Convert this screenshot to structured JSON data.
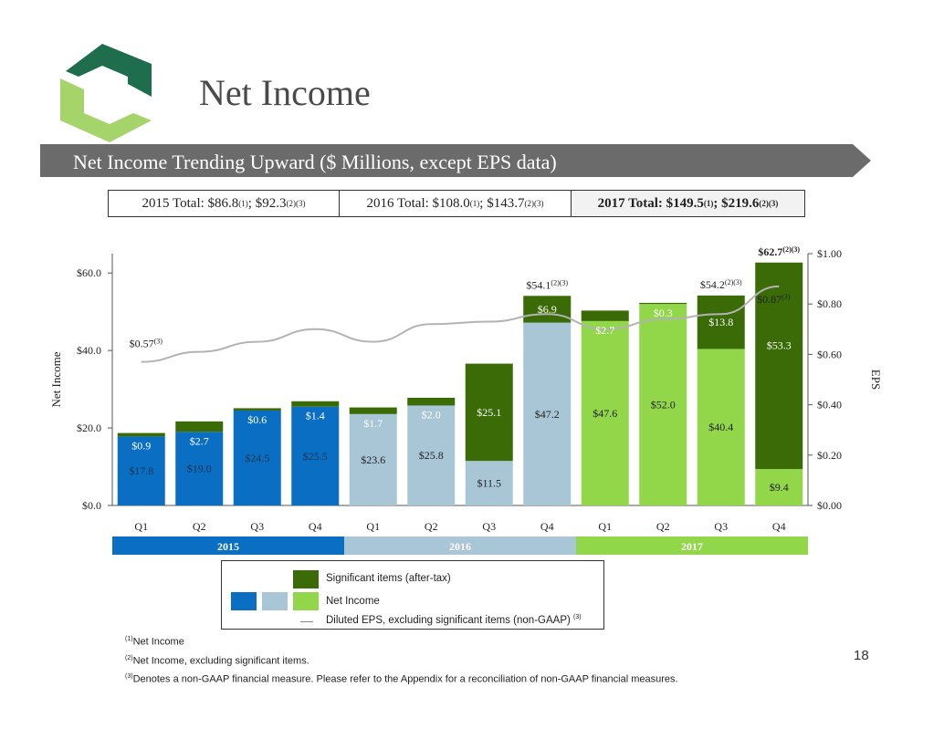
{
  "page": {
    "title": "Net Income",
    "banner": "Net Income Trending Upward ($ Millions, except EPS data)",
    "page_number": "18"
  },
  "colors": {
    "significant": "#3a6b06",
    "year_2015": "#0a6fc2",
    "year_2016": "#a9c6d6",
    "year_2017": "#92d64a",
    "eps_line": "#b3b3b3",
    "banner": "#6b6b6b",
    "logo_dark": "#1e6e4e",
    "logo_light": "#a5d46a"
  },
  "totals": [
    {
      "label": "2015 Total: $86.8",
      "sup1": "(1)",
      "mid": "; $92.3",
      "sup2": "(2)(3)"
    },
    {
      "label": "2016 Total: $108.0",
      "sup1": "(1)",
      "mid": "; $143.7",
      "sup2": "(2)(3)"
    },
    {
      "label": "2017 Total: $149.5",
      "sup1": "(1)",
      "mid": "; $219.6",
      "sup2": "(2)(3)"
    }
  ],
  "chart_data": {
    "type": "bar",
    "stacked": true,
    "categories": [
      "Q1",
      "Q2",
      "Q3",
      "Q4",
      "Q1",
      "Q2",
      "Q3",
      "Q4",
      "Q1",
      "Q2",
      "Q3",
      "Q4"
    ],
    "year_of_category": [
      2015,
      2015,
      2015,
      2015,
      2016,
      2016,
      2016,
      2016,
      2017,
      2017,
      2017,
      2017
    ],
    "series": [
      {
        "name": "Net Income",
        "values": [
          17.8,
          19.0,
          24.5,
          25.5,
          23.6,
          25.8,
          11.5,
          47.2,
          47.6,
          52.0,
          40.4,
          9.4
        ]
      },
      {
        "name": "Significant items (after-tax)",
        "values": [
          0.9,
          2.7,
          0.6,
          1.4,
          1.7,
          2.0,
          25.1,
          6.9,
          2.7,
          0.3,
          13.8,
          53.3
        ]
      }
    ],
    "bar_labels": {
      "net_income": [
        "$17.8",
        "$19.0",
        "$24.5",
        "$25.5",
        "$23.6",
        "$25.8",
        "$11.5",
        "$47.2",
        "$47.6",
        "$52.0",
        "$40.4",
        "$9.4"
      ],
      "significant": [
        "$0.9",
        "$2.7",
        "$0.6",
        "$1.4",
        "$1.7",
        "$2.0",
        "$25.1",
        "$6.9",
        "$2.7",
        "$0.3",
        "$13.8",
        "$53.3"
      ]
    },
    "total_annotations": [
      {
        "index": 7,
        "text": "$54.1",
        "sup": "(2)(3)"
      },
      {
        "index": 10,
        "text": "$54.2",
        "sup": "(2)(3)"
      },
      {
        "index": 11,
        "text": "$62.7",
        "sup": "(2)(3)"
      }
    ],
    "eps_series": {
      "name": "Diluted EPS, excluding significant items (non-GAAP)",
      "values": [
        0.57,
        0.61,
        0.65,
        0.7,
        0.65,
        0.72,
        0.73,
        0.76,
        0.7,
        0.74,
        0.76,
        0.87
      ]
    },
    "eps_annotations": [
      {
        "index": 0,
        "text": "$0.57",
        "sup": "(3)"
      },
      {
        "index": 11,
        "text": "$0.87",
        "sup": "(3)"
      }
    ],
    "ylabel": "Net Income",
    "ylabel_right": "EPS",
    "ylim": [
      0,
      65
    ],
    "yticks": [
      0,
      20,
      40,
      60
    ],
    "ytick_labels": [
      "$0.0",
      "$20.0",
      "$40.0",
      "$60.0"
    ],
    "ylim_right": [
      0,
      1.0
    ],
    "yticks_right": [
      0,
      0.2,
      0.4,
      0.6,
      0.8,
      1.0
    ],
    "ytick_labels_right": [
      "$0.00",
      "$0.20",
      "$0.40",
      "$0.60",
      "$0.80",
      "$1.00"
    ],
    "year_labels": [
      "2015",
      "2016",
      "2017"
    ],
    "grid": false
  },
  "legend": {
    "significant_label": "Significant items (after-tax)",
    "net_income_label": "Net Income",
    "eps_label": "Diluted EPS, excluding significant items (non-GAAP)",
    "eps_sup": "(3)"
  },
  "footnotes": [
    {
      "sup": "(1)",
      "text": "Net Income"
    },
    {
      "sup": "(2)",
      "text": "Net Income, excluding significant items."
    },
    {
      "sup": "(3)",
      "text": "Denotes a non-GAAP financial measure. Please refer to the Appendix for a reconciliation of non-GAAP financial measures."
    }
  ]
}
